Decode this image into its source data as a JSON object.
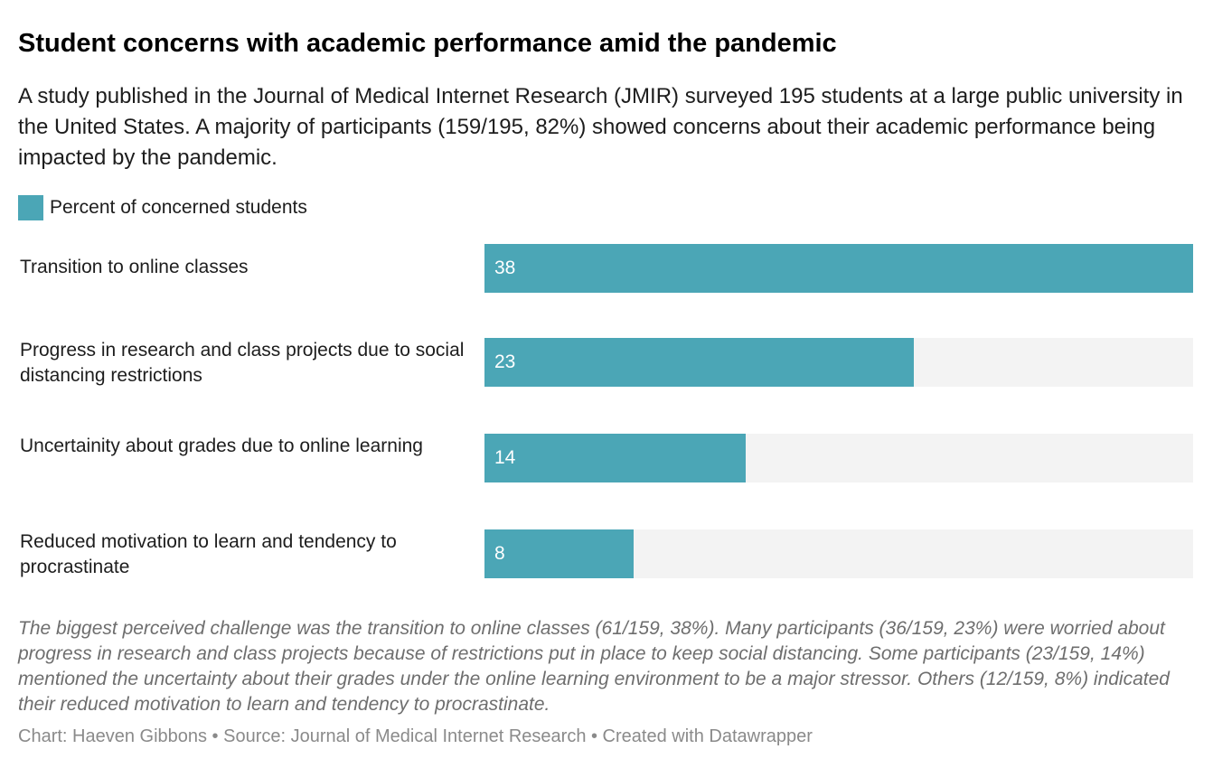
{
  "header": {
    "title": "Student concerns with academic performance amid the pandemic",
    "subtitle": "A study published in the Journal of Medical Internet Research (JMIR) surveyed 195 students at a large public university in the United States. A majority of participants (159/195, 82%) showed concerns about their academic performance being impacted by the pandemic."
  },
  "chart_data": {
    "type": "bar",
    "orientation": "horizontal",
    "categories": [
      "Transition to online classes",
      "Progress in research and class projects due to social distancing restrictions",
      "Uncertainity about grades due to online learning",
      "Reduced motivation to learn and tendency to procrastinate"
    ],
    "series": [
      {
        "name": "Percent of concerned students",
        "values": [
          38,
          23,
          14,
          8
        ],
        "color": "#4ba6b6"
      }
    ],
    "xlim": [
      0,
      38
    ],
    "grid": false,
    "legend_position": "top-left",
    "data_labels": true
  },
  "colors": {
    "bar": "#4ba6b6",
    "track": "#f3f3f3"
  },
  "notes": {
    "text": "The biggest perceived challenge was the transition to online classes (61/159, 38%). Many participants (36/159, 23%) were worried about progress in research and class projects because of restrictions put in place to keep social distancing. Some participants (23/159, 14%) mentioned the uncertainty about their grades under the online learning environment to be a major stressor. Others (12/159, 8%) indicated their reduced motivation to learn and tendency to procrastinate."
  },
  "footer": {
    "credit": "Chart: Haeven Gibbons • Source: Journal of Medical Internet Research • Created with Datawrapper"
  }
}
